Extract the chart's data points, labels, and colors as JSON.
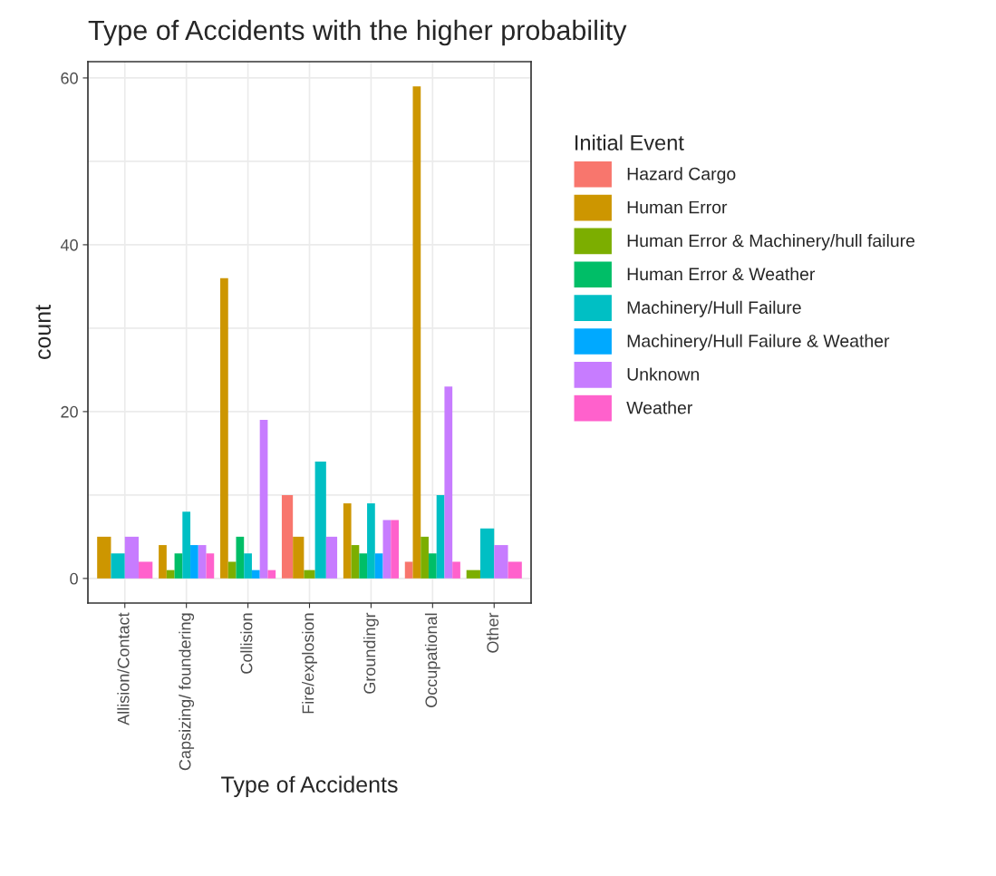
{
  "chart_data": {
    "type": "bar",
    "title": "Type of Accidents with the higher probability",
    "xlabel": "Type of Accidents",
    "ylabel": "count",
    "legend_title": "Initial Event",
    "legend": "right",
    "grid": true,
    "categories": [
      "Allision/Contact",
      "Capsizing/ foundering",
      "Collision",
      "Fire/explosion",
      "Groundingr",
      "Occupational",
      "Other"
    ],
    "ylim": [
      -2.95,
      61.95
    ],
    "yticks": [
      0,
      20,
      40,
      60
    ],
    "series": [
      {
        "name": "Hazard Cargo",
        "color": "#f8766d",
        "values": [
          null,
          null,
          null,
          10,
          null,
          2,
          null
        ]
      },
      {
        "name": "Human Error",
        "color": "#cd9600",
        "values": [
          5,
          4,
          36,
          5,
          9,
          59,
          null
        ]
      },
      {
        "name": "Human Error & Machinery/hull failure",
        "color": "#7cae00",
        "values": [
          null,
          1,
          2,
          1,
          4,
          5,
          1
        ]
      },
      {
        "name": "Human Error & Weather",
        "color": "#00be67",
        "values": [
          null,
          3,
          5,
          null,
          3,
          3,
          null
        ]
      },
      {
        "name": "Machinery/Hull Failure",
        "color": "#00bfc4",
        "values": [
          3,
          8,
          3,
          14,
          9,
          10,
          6
        ]
      },
      {
        "name": "Machinery/Hull Failure & Weather",
        "color": "#00a9ff",
        "values": [
          null,
          4,
          1,
          null,
          3,
          null,
          null
        ]
      },
      {
        "name": "Unknown",
        "color": "#c77cff",
        "values": [
          5,
          4,
          19,
          5,
          7,
          23,
          4
        ]
      },
      {
        "name": "Weather",
        "color": "#ff61cc",
        "values": [
          2,
          3,
          1,
          null,
          7,
          2,
          2
        ]
      }
    ]
  }
}
